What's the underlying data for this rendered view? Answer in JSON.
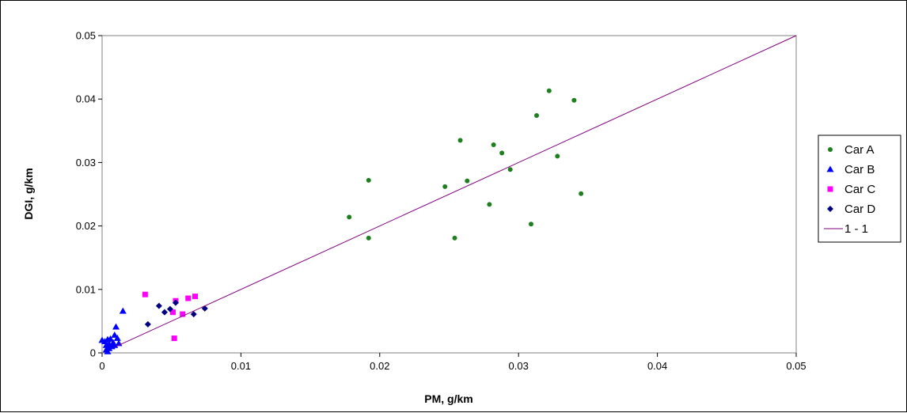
{
  "chart_data": {
    "type": "scatter",
    "xlabel": "PM, g/km",
    "ylabel": "DGI, g/km",
    "xlim": [
      0,
      0.05
    ],
    "ylim": [
      0,
      0.05
    ],
    "x_ticks": [
      "0",
      "0.01",
      "0.02",
      "0.03",
      "0.04",
      "0.05"
    ],
    "y_ticks": [
      "0",
      "0.01",
      "0.02",
      "0.03",
      "0.04",
      "0.05"
    ],
    "grid": false,
    "legend_position": "right",
    "series": [
      {
        "name": "Car A",
        "marker": "circle",
        "color": "#1e7f1e",
        "points": [
          [
            0.0178,
            0.0214
          ],
          [
            0.0192,
            0.0272
          ],
          [
            0.0192,
            0.0181
          ],
          [
            0.0247,
            0.0262
          ],
          [
            0.0254,
            0.0181
          ],
          [
            0.0258,
            0.0335
          ],
          [
            0.0263,
            0.0271
          ],
          [
            0.0279,
            0.0234
          ],
          [
            0.0282,
            0.0328
          ],
          [
            0.0288,
            0.0315
          ],
          [
            0.0294,
            0.0289
          ],
          [
            0.0309,
            0.0203
          ],
          [
            0.0313,
            0.0374
          ],
          [
            0.0322,
            0.0413
          ],
          [
            0.0328,
            0.031
          ],
          [
            0.034,
            0.0398
          ],
          [
            0.0345,
            0.0251
          ]
        ]
      },
      {
        "name": "Car B",
        "marker": "triangle",
        "color": "#0000ff",
        "points": [
          [
            0.0,
            0.002
          ],
          [
            0.0002,
            0.0018
          ],
          [
            0.0003,
            0.0005
          ],
          [
            0.0003,
            0.0012
          ],
          [
            0.0004,
            0.0002
          ],
          [
            0.0004,
            0.0021
          ],
          [
            0.0005,
            0.0014
          ],
          [
            0.0005,
            0.0007
          ],
          [
            0.0006,
            0.0022
          ],
          [
            0.0007,
            0.001
          ],
          [
            0.0008,
            0.0016
          ],
          [
            0.0009,
            0.0028
          ],
          [
            0.0009,
            0.0012
          ],
          [
            0.001,
            0.0041
          ],
          [
            0.0011,
            0.0023
          ],
          [
            0.0012,
            0.0015
          ],
          [
            0.0015,
            0.0066
          ]
        ]
      },
      {
        "name": "Car C",
        "marker": "square",
        "color": "#ff00ff",
        "points": [
          [
            0.0031,
            0.0092
          ],
          [
            0.0051,
            0.0064
          ],
          [
            0.0052,
            0.0023
          ],
          [
            0.0053,
            0.0082
          ],
          [
            0.0058,
            0.0061
          ],
          [
            0.0062,
            0.0086
          ],
          [
            0.0067,
            0.0089
          ]
        ]
      },
      {
        "name": "Car D",
        "marker": "diamond",
        "color": "#000080",
        "points": [
          [
            0.0033,
            0.0045
          ],
          [
            0.0041,
            0.0074
          ],
          [
            0.0045,
            0.0064
          ],
          [
            0.0049,
            0.0069
          ],
          [
            0.0053,
            0.0079
          ],
          [
            0.0066,
            0.0061
          ],
          [
            0.0074,
            0.007
          ]
        ]
      },
      {
        "name": "1 - 1",
        "type": "line",
        "color": "#800080",
        "points": [
          [
            0.001,
            0.001
          ],
          [
            0.05,
            0.05
          ]
        ]
      }
    ]
  }
}
